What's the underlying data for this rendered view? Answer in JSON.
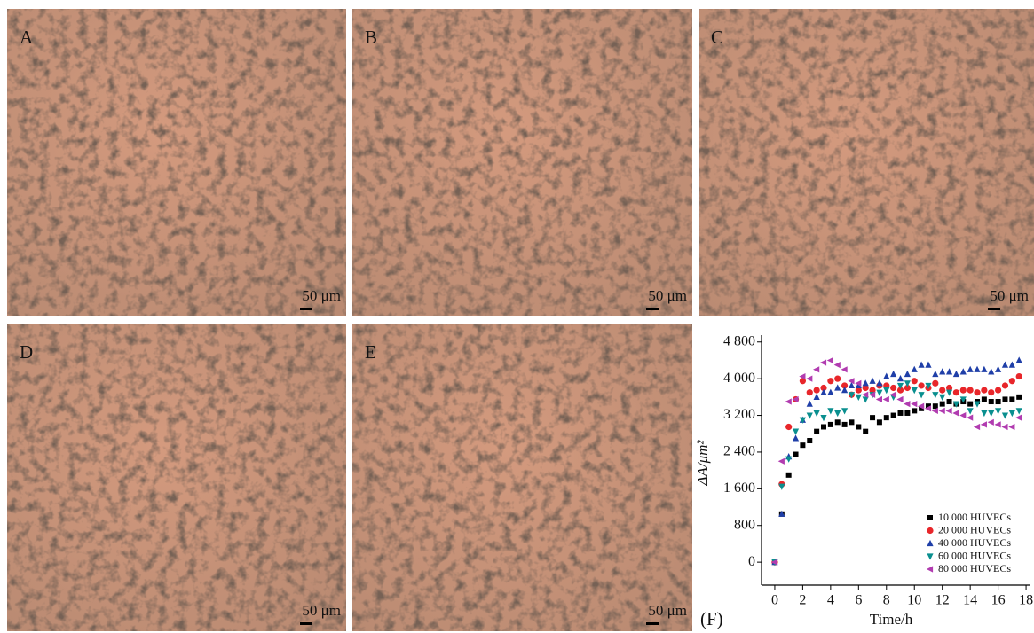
{
  "panels": [
    {
      "label": "A",
      "scale_bar": "50 μm"
    },
    {
      "label": "B",
      "scale_bar": "50 μm"
    },
    {
      "label": "C",
      "scale_bar": "50 μm"
    },
    {
      "label": "D",
      "scale_bar": "50 μm"
    },
    {
      "label": "E",
      "scale_bar": "50 μm"
    }
  ],
  "chart_data": {
    "type": "scatter",
    "panel_label": "(F)",
    "x_label": "Time/h",
    "y_label": "ΔA/μm²",
    "x": [
      0,
      0.5,
      1,
      1.5,
      2,
      2.5,
      3,
      3.5,
      4,
      4.5,
      5,
      5.5,
      6,
      6.5,
      7,
      7.5,
      8,
      8.5,
      9,
      9.5,
      10,
      10.5,
      11,
      11.5,
      12,
      12.5,
      13,
      13.5,
      14,
      14.5,
      15,
      15.5,
      16,
      16.5,
      17,
      17.5
    ],
    "xlim": [
      -0.95,
      18.25
    ],
    "xticks": [
      0,
      2,
      4,
      6,
      8,
      10,
      12,
      14,
      16,
      18
    ],
    "ylim": [
      -500,
      4950
    ],
    "yticks": [
      0,
      800,
      {
        "value": 1600,
        "label": "1 600"
      },
      {
        "value": 2400,
        "label": "2 400"
      },
      {
        "value": 3200,
        "label": "3 200"
      },
      {
        "value": 4000,
        "label": "4 000"
      },
      {
        "value": 4800,
        "label": "4 800"
      }
    ],
    "legend": "lower right",
    "series": [
      {
        "name": "10 000 HUVECs",
        "color": "#000000",
        "marker": "square",
        "values": [
          0,
          1050,
          1900,
          2350,
          2550,
          2650,
          2850,
          2950,
          3000,
          3050,
          3000,
          3050,
          2950,
          2850,
          3150,
          3050,
          3150,
          3200,
          3250,
          3250,
          3300,
          3350,
          3400,
          3400,
          3450,
          3500,
          3450,
          3500,
          3450,
          3500,
          3550,
          3500,
          3500,
          3550,
          3550,
          3600
        ]
      },
      {
        "name": "20 000 HUVECs",
        "color": "#e8262a",
        "marker": "circle",
        "values": [
          0,
          1700,
          2950,
          3550,
          3950,
          3700,
          3750,
          3800,
          3950,
          4000,
          3850,
          3650,
          3750,
          3800,
          3750,
          3850,
          3850,
          3800,
          3750,
          3800,
          3950,
          3850,
          3800,
          3900,
          3750,
          3800,
          3700,
          3750,
          3750,
          3700,
          3750,
          3700,
          3750,
          3850,
          3950,
          4050
        ]
      },
      {
        "name": "40 000 HUVECs",
        "color": "#1f3fa8",
        "marker": "triangle-up",
        "values": [
          0,
          1050,
          2300,
          2700,
          3100,
          3450,
          3600,
          3700,
          3700,
          3800,
          3750,
          3850,
          3850,
          3900,
          3950,
          3900,
          4050,
          4100,
          4000,
          4100,
          4200,
          4300,
          4300,
          4100,
          4150,
          4150,
          4100,
          4150,
          4200,
          4200,
          4200,
          4150,
          4200,
          4300,
          4300,
          4400
        ]
      },
      {
        "name": "60 000 HUVECs",
        "color": "#0a8f8f",
        "marker": "triangle-down",
        "values": [
          0,
          1650,
          2250,
          2850,
          3100,
          3200,
          3250,
          3150,
          3300,
          3250,
          3300,
          3650,
          3600,
          3550,
          3650,
          3700,
          3750,
          3600,
          3850,
          3900,
          3750,
          3650,
          3850,
          3650,
          3600,
          3700,
          3450,
          3550,
          3300,
          3450,
          3250,
          3250,
          3300,
          3200,
          3250,
          3300
        ]
      },
      {
        "name": "80 000 HUVECs",
        "color": "#b13cb0",
        "marker": "triangle-left",
        "values": [
          0,
          2200,
          3500,
          3550,
          4050,
          4000,
          4200,
          4350,
          4400,
          4300,
          4200,
          3950,
          3900,
          3650,
          3650,
          3550,
          3550,
          3650,
          3550,
          3450,
          3450,
          3400,
          3350,
          3300,
          3300,
          3300,
          3250,
          3200,
          3150,
          2950,
          3000,
          3050,
          3000,
          2950,
          2950,
          3150
        ]
      }
    ]
  }
}
